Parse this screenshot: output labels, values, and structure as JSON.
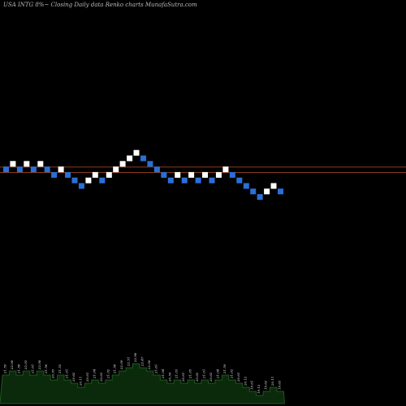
{
  "title": "USA INTG 8%~  Closing Daily data Renko  charts MunafaSutra.com",
  "chart_data": [
    {
      "type": "renko",
      "title": "USA INTG 8%~  Closing Daily data Renko  charts MunafaSutra.com",
      "colors": {
        "up": "#ffffff",
        "down": "#2a6fd8",
        "reference_line": "#8a3a1c",
        "background": "#000000"
      },
      "reference_levels": [
        3,
        4
      ],
      "levels": [
        3,
        4,
        3,
        4,
        3,
        4,
        3,
        2,
        3,
        2,
        1,
        0,
        1,
        2,
        1,
        2,
        3,
        4,
        5,
        6,
        5,
        4,
        3,
        2,
        1,
        2,
        1,
        2,
        1,
        2,
        1,
        2,
        3,
        2,
        1,
        0,
        -1,
        -2,
        -1,
        0,
        -1
      ],
      "directions": [
        "down",
        "up",
        "down",
        "up",
        "down",
        "up",
        "down",
        "down",
        "up",
        "down",
        "down",
        "down",
        "up",
        "up",
        "down",
        "up",
        "up",
        "up",
        "up",
        "up",
        "down",
        "down",
        "down",
        "down",
        "down",
        "up",
        "down",
        "up",
        "down",
        "up",
        "down",
        "up",
        "up",
        "down",
        "down",
        "down",
        "down",
        "down",
        "up",
        "up",
        "down"
      ]
    },
    {
      "type": "area",
      "title": "",
      "values": [
        21.6,
        22.1,
        21.6,
        22.1,
        21.6,
        22.1,
        21.6,
        21.0,
        21.6,
        21.0,
        20.6,
        20.1,
        20.6,
        21.0,
        20.6,
        21.0,
        21.6,
        22.1,
        22.5,
        23.0,
        22.5,
        22.1,
        21.6,
        21.0,
        20.6,
        21.0,
        20.6,
        21.0,
        20.6,
        21.0,
        20.6,
        21.0,
        21.6,
        21.0,
        20.6,
        20.1,
        19.6,
        19.1,
        19.6,
        20.1,
        19.6
      ],
      "labels": [
        "21.59",
        "22.06",
        "21.58",
        "22.05",
        "21.61",
        "22.08",
        "21.56",
        "20.95",
        "21.55",
        "21.01",
        "20.62",
        "20.11",
        "20.61",
        "21.04",
        "20.63",
        "21.02",
        "21.58",
        "22.09",
        "22.51",
        "22.98",
        "22.47",
        "22.06",
        "21.61",
        "21.04",
        "20.59",
        "21.03",
        "20.61",
        "21.05",
        "20.62",
        "21.01",
        "20.63",
        "21.04",
        "21.59",
        "21.02",
        "20.61",
        "20.12",
        "19.61",
        "19.13",
        "19.62",
        "20.11",
        "19.63"
      ]
    }
  ]
}
